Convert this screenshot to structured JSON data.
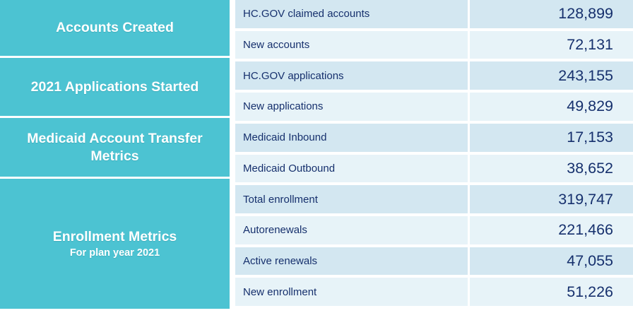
{
  "colors": {
    "teal": "#4cc3d2",
    "row_dark": "#d3e7f1",
    "row_light": "#e7f3f8",
    "text_navy": "#16306d",
    "title_white": "#ffffff"
  },
  "groups": [
    {
      "title": "Accounts Created",
      "rows": [
        {
          "label": "HC.GOV claimed accounts",
          "value": "128,899"
        },
        {
          "label": "New accounts",
          "value": "72,131"
        }
      ]
    },
    {
      "title": "2021 Applications Started",
      "rows": [
        {
          "label": "HC.GOV applications",
          "value": "243,155"
        },
        {
          "label": "New applications",
          "value": "49,829"
        }
      ]
    },
    {
      "title": "Medicaid Account Transfer Metrics",
      "rows": [
        {
          "label": "Medicaid Inbound",
          "value": "17,153"
        },
        {
          "label": "Medicaid Outbound",
          "value": "38,652"
        }
      ]
    },
    {
      "title": "Enrollment Metrics",
      "subtitle": "For plan year 2021",
      "rows": [
        {
          "label": "Total enrollment",
          "value": "319,747"
        },
        {
          "label": "Autorenewals",
          "value": "221,466"
        },
        {
          "label": "Active renewals",
          "value": "47,055"
        },
        {
          "label": "New enrollment",
          "value": "51,226"
        }
      ]
    }
  ],
  "chart_data": {
    "type": "table",
    "title": "",
    "column_roles": [
      "group",
      "metric",
      "value"
    ],
    "rows": [
      {
        "group": "Accounts Created",
        "metric": "HC.GOV claimed accounts",
        "value": 128899
      },
      {
        "group": "Accounts Created",
        "metric": "New accounts",
        "value": 72131
      },
      {
        "group": "2021 Applications Started",
        "metric": "HC.GOV applications",
        "value": 243155
      },
      {
        "group": "2021 Applications Started",
        "metric": "New applications",
        "value": 49829
      },
      {
        "group": "Medicaid Account Transfer Metrics",
        "metric": "Medicaid Inbound",
        "value": 17153
      },
      {
        "group": "Medicaid Account Transfer Metrics",
        "metric": "Medicaid Outbound",
        "value": 38652
      },
      {
        "group": "Enrollment Metrics (For plan year 2021)",
        "metric": "Total enrollment",
        "value": 319747
      },
      {
        "group": "Enrollment Metrics (For plan year 2021)",
        "metric": "Autorenewals",
        "value": 221466
      },
      {
        "group": "Enrollment Metrics (For plan year 2021)",
        "metric": "Active renewals",
        "value": 47055
      },
      {
        "group": "Enrollment Metrics (For plan year 2021)",
        "metric": "New enrollment",
        "value": 51226
      }
    ]
  }
}
